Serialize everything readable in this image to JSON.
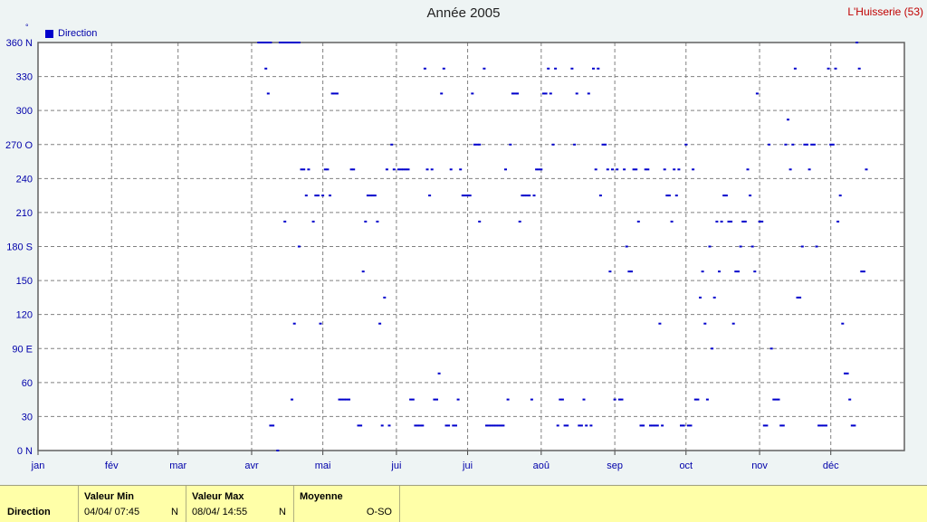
{
  "header": {
    "site": "L'Huisserie (53)"
  },
  "legend": {
    "label": "Direction",
    "color": "#0000cc"
  },
  "footer": {
    "series": "Direction",
    "min": {
      "label": "Valeur Min",
      "value": "04/04/  07:45",
      "unit": "N"
    },
    "max": {
      "label": "Valeur Max",
      "value": "08/04/  14:55",
      "unit": "N"
    },
    "avg": {
      "label": "Moyenne",
      "value": "O-SO"
    }
  },
  "chart_data": {
    "type": "scatter",
    "title": "Année 2005",
    "ylabel_unit": "°",
    "ylim": [
      0,
      360
    ],
    "y_ticks": [
      "0  N",
      "30",
      "60",
      "90  E",
      "120",
      "150",
      "180 S",
      "210",
      "240",
      "270 O",
      "300",
      "330",
      "360 N"
    ],
    "x_ticks": [
      "jan",
      "fév",
      "mar",
      "avr",
      "mai",
      "jui",
      "jui",
      "aoû",
      "sep",
      "oct",
      "nov",
      "déc"
    ],
    "xlim_days": [
      0,
      365
    ],
    "grid": true,
    "legend_position": "top-left",
    "series": [
      {
        "name": "Direction",
        "color": "#0000cc",
        "points": [
          [
            93,
            360
          ],
          [
            94,
            360
          ],
          [
            95,
            360
          ],
          [
            96,
            360
          ],
          [
            97,
            360
          ],
          [
            98,
            360
          ],
          [
            96,
            337
          ],
          [
            97,
            315
          ],
          [
            98,
            22
          ],
          [
            99,
            22
          ],
          [
            101,
            0
          ],
          [
            102,
            360
          ],
          [
            103,
            360
          ],
          [
            104,
            360
          ],
          [
            105,
            360
          ],
          [
            106,
            360
          ],
          [
            107,
            360
          ],
          [
            108,
            360
          ],
          [
            109,
            360
          ],
          [
            110,
            360
          ],
          [
            104,
            202
          ],
          [
            107,
            45
          ],
          [
            108,
            112
          ],
          [
            110,
            180
          ],
          [
            111,
            248
          ],
          [
            112,
            248
          ],
          [
            113,
            225
          ],
          [
            114,
            248
          ],
          [
            116,
            202
          ],
          [
            117,
            225
          ],
          [
            118,
            225
          ],
          [
            119,
            112
          ],
          [
            120,
            225
          ],
          [
            121,
            248
          ],
          [
            122,
            248
          ],
          [
            123,
            225
          ],
          [
            124,
            315
          ],
          [
            125,
            315
          ],
          [
            126,
            315
          ],
          [
            127,
            45
          ],
          [
            128,
            45
          ],
          [
            129,
            45
          ],
          [
            130,
            45
          ],
          [
            131,
            45
          ],
          [
            132,
            248
          ],
          [
            133,
            248
          ],
          [
            135,
            22
          ],
          [
            136,
            22
          ],
          [
            137,
            158
          ],
          [
            138,
            202
          ],
          [
            139,
            225
          ],
          [
            140,
            225
          ],
          [
            141,
            225
          ],
          [
            142,
            225
          ],
          [
            143,
            202
          ],
          [
            144,
            112
          ],
          [
            145,
            22
          ],
          [
            146,
            135
          ],
          [
            147,
            248
          ],
          [
            148,
            22
          ],
          [
            149,
            270
          ],
          [
            150,
            248
          ],
          [
            152,
            248
          ],
          [
            153,
            248
          ],
          [
            154,
            248
          ],
          [
            155,
            248
          ],
          [
            156,
            248
          ],
          [
            157,
            45
          ],
          [
            158,
            45
          ],
          [
            159,
            22
          ],
          [
            160,
            22
          ],
          [
            161,
            22
          ],
          [
            162,
            22
          ],
          [
            163,
            337
          ],
          [
            164,
            248
          ],
          [
            165,
            225
          ],
          [
            166,
            248
          ],
          [
            167,
            45
          ],
          [
            168,
            45
          ],
          [
            169,
            68
          ],
          [
            170,
            315
          ],
          [
            171,
            337
          ],
          [
            172,
            22
          ],
          [
            173,
            22
          ],
          [
            174,
            248
          ],
          [
            175,
            22
          ],
          [
            176,
            22
          ],
          [
            177,
            45
          ],
          [
            178,
            248
          ],
          [
            179,
            225
          ],
          [
            180,
            225
          ],
          [
            181,
            225
          ],
          [
            182,
            225
          ],
          [
            183,
            315
          ],
          [
            184,
            270
          ],
          [
            185,
            270
          ],
          [
            186,
            270
          ],
          [
            186,
            202
          ],
          [
            188,
            337
          ],
          [
            189,
            22
          ],
          [
            190,
            22
          ],
          [
            191,
            22
          ],
          [
            192,
            22
          ],
          [
            193,
            22
          ],
          [
            194,
            22
          ],
          [
            195,
            22
          ],
          [
            196,
            22
          ],
          [
            197,
            248
          ],
          [
            198,
            45
          ],
          [
            199,
            270
          ],
          [
            200,
            315
          ],
          [
            201,
            315
          ],
          [
            202,
            315
          ],
          [
            203,
            202
          ],
          [
            204,
            225
          ],
          [
            205,
            225
          ],
          [
            206,
            225
          ],
          [
            207,
            225
          ],
          [
            208,
            45
          ],
          [
            209,
            225
          ],
          [
            210,
            248
          ],
          [
            211,
            248
          ],
          [
            212,
            248
          ],
          [
            213,
            315
          ],
          [
            214,
            315
          ],
          [
            215,
            337
          ],
          [
            216,
            315
          ],
          [
            217,
            270
          ],
          [
            218,
            337
          ],
          [
            219,
            22
          ],
          [
            220,
            45
          ],
          [
            221,
            45
          ],
          [
            222,
            22
          ],
          [
            223,
            22
          ],
          [
            225,
            337
          ],
          [
            226,
            270
          ],
          [
            227,
            315
          ],
          [
            228,
            22
          ],
          [
            229,
            22
          ],
          [
            230,
            45
          ],
          [
            231,
            22
          ],
          [
            232,
            315
          ],
          [
            233,
            22
          ],
          [
            234,
            337
          ],
          [
            235,
            248
          ],
          [
            236,
            337
          ],
          [
            237,
            225
          ],
          [
            238,
            270
          ],
          [
            239,
            270
          ],
          [
            240,
            248
          ],
          [
            241,
            158
          ],
          [
            242,
            248
          ],
          [
            243,
            45
          ],
          [
            244,
            248
          ],
          [
            245,
            45
          ],
          [
            246,
            45
          ],
          [
            247,
            248
          ],
          [
            248,
            180
          ],
          [
            249,
            158
          ],
          [
            250,
            158
          ],
          [
            251,
            248
          ],
          [
            252,
            248
          ],
          [
            253,
            202
          ],
          [
            254,
            22
          ],
          [
            255,
            22
          ],
          [
            256,
            248
          ],
          [
            257,
            248
          ],
          [
            258,
            22
          ],
          [
            259,
            22
          ],
          [
            260,
            22
          ],
          [
            261,
            22
          ],
          [
            262,
            112
          ],
          [
            263,
            22
          ],
          [
            264,
            248
          ],
          [
            265,
            225
          ],
          [
            266,
            225
          ],
          [
            267,
            202
          ],
          [
            268,
            248
          ],
          [
            269,
            225
          ],
          [
            270,
            248
          ],
          [
            271,
            22
          ],
          [
            272,
            22
          ],
          [
            273,
            270
          ],
          [
            274,
            22
          ],
          [
            275,
            22
          ],
          [
            276,
            248
          ],
          [
            277,
            45
          ],
          [
            278,
            45
          ],
          [
            279,
            135
          ],
          [
            280,
            158
          ],
          [
            281,
            112
          ],
          [
            282,
            45
          ],
          [
            283,
            180
          ],
          [
            284,
            90
          ],
          [
            285,
            135
          ],
          [
            286,
            202
          ],
          [
            287,
            158
          ],
          [
            288,
            202
          ],
          [
            289,
            225
          ],
          [
            290,
            225
          ],
          [
            291,
            202
          ],
          [
            292,
            202
          ],
          [
            293,
            112
          ],
          [
            294,
            158
          ],
          [
            295,
            158
          ],
          [
            296,
            180
          ],
          [
            297,
            202
          ],
          [
            298,
            202
          ],
          [
            299,
            248
          ],
          [
            300,
            225
          ],
          [
            301,
            180
          ],
          [
            302,
            158
          ],
          [
            303,
            315
          ],
          [
            304,
            202
          ],
          [
            305,
            202
          ],
          [
            306,
            22
          ],
          [
            307,
            22
          ],
          [
            308,
            270
          ],
          [
            309,
            90
          ],
          [
            310,
            45
          ],
          [
            311,
            45
          ],
          [
            312,
            45
          ],
          [
            313,
            22
          ],
          [
            314,
            22
          ],
          [
            315,
            270
          ],
          [
            316,
            292
          ],
          [
            317,
            248
          ],
          [
            318,
            270
          ],
          [
            319,
            337
          ],
          [
            320,
            135
          ],
          [
            321,
            135
          ],
          [
            322,
            180
          ],
          [
            323,
            270
          ],
          [
            324,
            270
          ],
          [
            325,
            248
          ],
          [
            326,
            270
          ],
          [
            327,
            270
          ],
          [
            328,
            180
          ],
          [
            329,
            22
          ],
          [
            330,
            22
          ],
          [
            331,
            22
          ],
          [
            332,
            22
          ],
          [
            333,
            337
          ],
          [
            334,
            270
          ],
          [
            335,
            270
          ],
          [
            336,
            337
          ],
          [
            337,
            202
          ],
          [
            338,
            225
          ],
          [
            339,
            112
          ],
          [
            340,
            68
          ],
          [
            341,
            68
          ],
          [
            342,
            45
          ],
          [
            343,
            22
          ],
          [
            344,
            22
          ],
          [
            345,
            360
          ],
          [
            346,
            337
          ],
          [
            347,
            158
          ],
          [
            348,
            158
          ],
          [
            349,
            248
          ]
        ]
      }
    ]
  }
}
